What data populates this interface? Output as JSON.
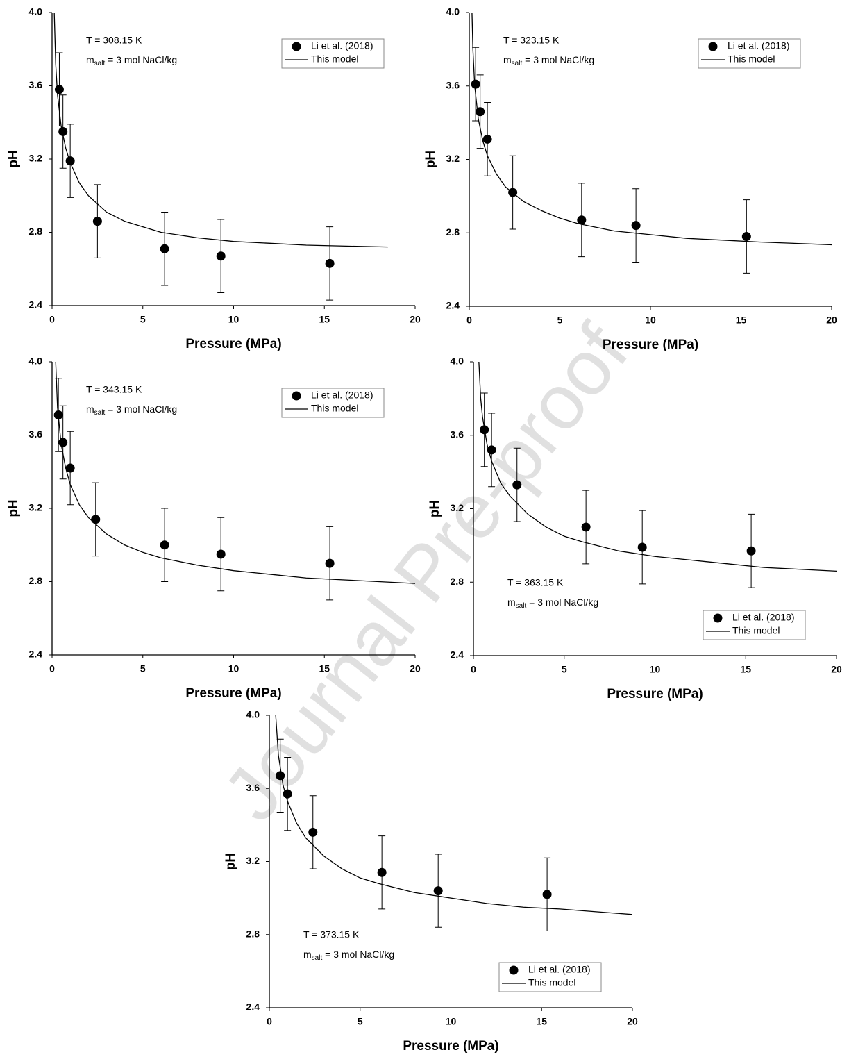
{
  "watermark": "Journal Pre-proof",
  "chart_data": [
    {
      "type": "scatter",
      "xlabel": "Pressure (MPa)",
      "ylabel": "pH",
      "temperature_label": "T = 308.15 K",
      "salinity_label": {
        "symbol": "m",
        "subscript": "salt",
        "text": " = 3 mol NaCl/kg"
      },
      "legend": "top-right",
      "xlim": [
        0,
        20
      ],
      "xticks": [
        0,
        5,
        10,
        15,
        20
      ],
      "ylim": [
        2.4,
        4.0
      ],
      "yticks": [
        2.4,
        2.8,
        3.2,
        3.6,
        {
          "value": 4.0,
          "label": "4.0"
        }
      ],
      "series": [
        {
          "name": "Li et al. (2018)",
          "color": "#000000",
          "marker": "circle",
          "x": [
            0.4,
            0.6,
            1.0,
            2.5,
            6.2,
            9.3,
            15.3
          ],
          "values": [
            3.58,
            3.35,
            3.19,
            2.86,
            2.71,
            2.67,
            2.63
          ],
          "errors": [
            0.2,
            0.2,
            0.2,
            0.2,
            0.2,
            0.2,
            0.2
          ]
        },
        {
          "name": "This model",
          "color": "#000000",
          "marker": "line",
          "x": [
            0.12,
            0.2,
            0.3,
            0.5,
            0.75,
            1,
            1.5,
            2,
            3,
            4,
            5,
            6,
            8,
            10,
            12,
            14,
            16,
            18.5
          ],
          "values": [
            4.0,
            3.72,
            3.55,
            3.38,
            3.26,
            3.18,
            3.07,
            3.0,
            2.91,
            2.86,
            2.83,
            2.8,
            2.77,
            2.75,
            2.74,
            2.73,
            2.725,
            2.72
          ]
        }
      ]
    },
    {
      "type": "scatter",
      "xlabel": "Pressure (MPa)",
      "ylabel": "pH",
      "temperature_label": "T = 323.15 K",
      "salinity_label": {
        "symbol": "m",
        "subscript": "salt",
        "text": " = 3 mol NaCl/kg"
      },
      "legend": "top-right",
      "xlim": [
        0,
        20
      ],
      "xticks": [
        0,
        5,
        10,
        15,
        20
      ],
      "ylim": [
        2.4,
        4.0
      ],
      "yticks": [
        2.4,
        2.8,
        3.2,
        3.6,
        {
          "value": 4.0,
          "label": "4.0"
        }
      ],
      "series": [
        {
          "name": "Li et al. (2018)",
          "color": "#000000",
          "marker": "circle",
          "x": [
            0.35,
            0.6,
            1.0,
            2.4,
            6.2,
            9.2,
            15.3
          ],
          "values": [
            3.61,
            3.46,
            3.31,
            3.02,
            2.87,
            2.84,
            2.78
          ],
          "errors": [
            0.2,
            0.2,
            0.2,
            0.2,
            0.2,
            0.2,
            0.2
          ]
        },
        {
          "name": "This model",
          "color": "#000000",
          "marker": "line",
          "x": [
            0.15,
            0.2,
            0.3,
            0.5,
            0.75,
            1,
            1.5,
            2,
            3,
            4,
            5,
            6,
            8,
            10,
            12,
            14,
            16,
            20
          ],
          "values": [
            4.0,
            3.8,
            3.6,
            3.42,
            3.3,
            3.22,
            3.12,
            3.05,
            2.97,
            2.92,
            2.88,
            2.85,
            2.81,
            2.79,
            2.77,
            2.76,
            2.75,
            2.735
          ]
        }
      ]
    },
    {
      "type": "scatter",
      "xlabel": "Pressure (MPa)",
      "ylabel": "pH",
      "temperature_label": "T = 343.15 K",
      "salinity_label": {
        "symbol": "m",
        "subscript": "salt",
        "text": " = 3 mol NaCl/kg"
      },
      "legend": "top-right",
      "xlim": [
        0,
        20
      ],
      "xticks": [
        0,
        5,
        10,
        15,
        20
      ],
      "ylim": [
        2.4,
        4.0
      ],
      "yticks": [
        2.4,
        2.8,
        3.2,
        3.6,
        {
          "value": 4.0,
          "label": "4.0"
        }
      ],
      "series": [
        {
          "name": "Li et al. (2018)",
          "color": "#000000",
          "marker": "circle",
          "x": [
            0.35,
            0.6,
            1.0,
            2.4,
            6.2,
            9.3,
            15.3
          ],
          "values": [
            3.71,
            3.56,
            3.42,
            3.14,
            3.0,
            2.95,
            2.9
          ],
          "errors": [
            0.2,
            0.2,
            0.2,
            0.2,
            0.2,
            0.2,
            0.2
          ]
        },
        {
          "name": "This model",
          "color": "#000000",
          "marker": "line",
          "x": [
            0.2,
            0.3,
            0.5,
            0.75,
            1,
            1.5,
            2,
            3,
            4,
            5,
            6,
            8,
            10,
            12,
            14,
            16,
            20
          ],
          "values": [
            4.0,
            3.75,
            3.55,
            3.42,
            3.33,
            3.22,
            3.15,
            3.06,
            3.0,
            2.96,
            2.93,
            2.89,
            2.86,
            2.84,
            2.82,
            2.81,
            2.79
          ]
        }
      ]
    },
    {
      "type": "scatter",
      "xlabel": "Pressure (MPa)",
      "ylabel": "pH",
      "temperature_label": "T = 363.15 K",
      "salinity_label": {
        "symbol": "m",
        "subscript": "salt",
        "text": " = 3 mol NaCl/kg"
      },
      "legend": "bottom-right",
      "xlim": [
        0,
        20
      ],
      "xticks": [
        0,
        5,
        10,
        15,
        20
      ],
      "ylim": [
        2.4,
        4.0
      ],
      "yticks": [
        2.4,
        2.8,
        3.2,
        3.6,
        {
          "value": 4.0,
          "label": "4.0"
        }
      ],
      "series": [
        {
          "name": "Li et al. (2018)",
          "color": "#000000",
          "marker": "circle",
          "x": [
            0.6,
            1.0,
            2.4,
            6.2,
            9.3,
            15.3
          ],
          "values": [
            3.63,
            3.52,
            3.33,
            3.1,
            2.99,
            2.97
          ],
          "errors": [
            0.2,
            0.2,
            0.2,
            0.2,
            0.2,
            0.2
          ]
        },
        {
          "name": "This model",
          "color": "#000000",
          "marker": "line",
          "x": [
            0.3,
            0.4,
            0.5,
            0.75,
            1,
            1.5,
            2,
            3,
            4,
            5,
            6,
            8,
            10,
            12,
            14,
            16,
            20
          ],
          "values": [
            4.0,
            3.8,
            3.7,
            3.55,
            3.46,
            3.34,
            3.27,
            3.17,
            3.1,
            3.05,
            3.02,
            2.97,
            2.94,
            2.92,
            2.9,
            2.88,
            2.86
          ]
        }
      ]
    },
    {
      "type": "scatter",
      "xlabel": "Pressure (MPa)",
      "ylabel": "pH",
      "temperature_label": "T = 373.15 K",
      "salinity_label": {
        "symbol": "m",
        "subscript": "salt",
        "text": " = 3 mol NaCl/kg"
      },
      "legend": "bottom-right",
      "xlim": [
        0,
        20
      ],
      "xticks": [
        0,
        5,
        10,
        15,
        20
      ],
      "ylim": [
        2.4,
        4.0
      ],
      "yticks": [
        2.4,
        2.8,
        3.2,
        3.6,
        {
          "value": 4.0,
          "label": "4.0"
        }
      ],
      "series": [
        {
          "name": "Li et al. (2018)",
          "color": "#000000",
          "marker": "circle",
          "x": [
            0.6,
            1.0,
            2.4,
            6.2,
            9.3,
            15.3
          ],
          "values": [
            3.67,
            3.57,
            3.36,
            3.14,
            3.04,
            3.02
          ],
          "errors": [
            0.2,
            0.2,
            0.2,
            0.2,
            0.2,
            0.2
          ]
        },
        {
          "name": "This model",
          "color": "#000000",
          "marker": "line",
          "x": [
            0.35,
            0.5,
            0.75,
            1,
            1.5,
            2,
            3,
            4,
            5,
            6,
            8,
            10,
            12,
            14,
            16,
            20
          ],
          "values": [
            4.0,
            3.78,
            3.62,
            3.53,
            3.41,
            3.33,
            3.23,
            3.16,
            3.11,
            3.08,
            3.03,
            3.0,
            2.97,
            2.95,
            2.94,
            2.91
          ]
        }
      ]
    }
  ]
}
